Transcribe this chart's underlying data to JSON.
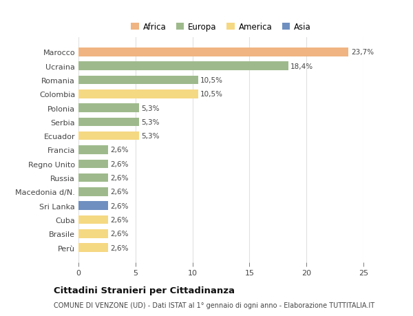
{
  "categories": [
    "Marocco",
    "Ucraina",
    "Romania",
    "Colombia",
    "Polonia",
    "Serbia",
    "Ecuador",
    "Francia",
    "Regno Unito",
    "Russia",
    "Macedonia d/N.",
    "Sri Lanka",
    "Cuba",
    "Brasile",
    "Perù"
  ],
  "values": [
    23.7,
    18.4,
    10.5,
    10.5,
    5.3,
    5.3,
    5.3,
    2.6,
    2.6,
    2.6,
    2.6,
    2.6,
    2.6,
    2.6,
    2.6
  ],
  "labels": [
    "23,7%",
    "18,4%",
    "10,5%",
    "10,5%",
    "5,3%",
    "5,3%",
    "5,3%",
    "2,6%",
    "2,6%",
    "2,6%",
    "2,6%",
    "2,6%",
    "2,6%",
    "2,6%",
    "2,6%"
  ],
  "colors": [
    "#f0b482",
    "#9eba8c",
    "#9eba8c",
    "#f5d882",
    "#9eba8c",
    "#9eba8c",
    "#f5d882",
    "#9eba8c",
    "#9eba8c",
    "#9eba8c",
    "#9eba8c",
    "#6e8fc0",
    "#f5d882",
    "#f5d882",
    "#f5d882"
  ],
  "legend": {
    "Africa": "#f0b482",
    "Europa": "#9eba8c",
    "America": "#f5d882",
    "Asia": "#6e8fc0"
  },
  "title": "Cittadini Stranieri per Cittadinanza",
  "subtitle": "COMUNE DI VENZONE (UD) - Dati ISTAT al 1° gennaio di ogni anno - Elaborazione TUTTITALIA.IT",
  "xlim": [
    0,
    25
  ],
  "xticks": [
    0,
    5,
    10,
    15,
    20,
    25
  ],
  "background_color": "#ffffff",
  "grid_color": "#e0e0e0"
}
